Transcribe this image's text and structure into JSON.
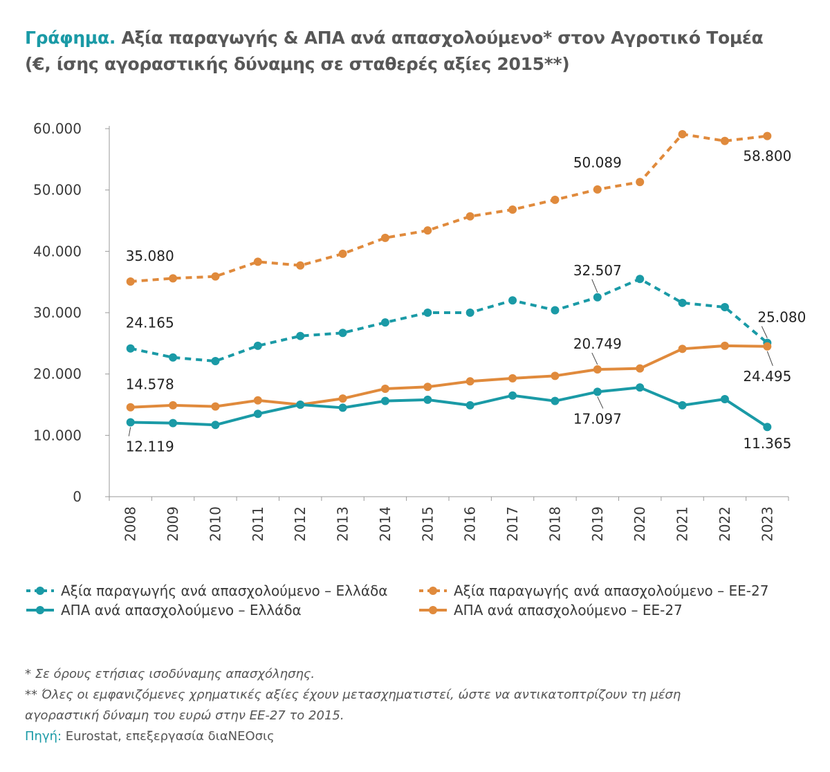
{
  "title": {
    "lead": "Γράφημα.",
    "line1": "Αξία παραγωγής & ΑΠΑ ανά απασχολούμενο* στον Αγροτικό Τομέα",
    "line2": "(€, ίσης αγοραστικής δύναμης σε σταθερές αξίες 2015**)"
  },
  "chart_data": {
    "type": "line",
    "categories": [
      "2008",
      "2009",
      "2010",
      "2011",
      "2012",
      "2013",
      "2014",
      "2015",
      "2016",
      "2017",
      "2018",
      "2019",
      "2020",
      "2021",
      "2022",
      "2023"
    ],
    "ylim": [
      0,
      60000
    ],
    "yticks": [
      "0",
      "10.000",
      "20.000",
      "30.000",
      "40.000",
      "50.000",
      "60.000"
    ],
    "grid": false,
    "legend_position": "bottom",
    "series": [
      {
        "name": "Αξία παραγωγής ανά απασχολούμενο – Ελλάδα",
        "color": "#1a9aa6",
        "style": "dashed",
        "values": [
          24165,
          22700,
          22100,
          24600,
          26200,
          26700,
          28400,
          30000,
          30000,
          32000,
          30400,
          32507,
          35500,
          31600,
          30900,
          25080
        ],
        "labels": {
          "0": "24.165",
          "11": "32.507",
          "15": "25.080"
        }
      },
      {
        "name": "Αξία παραγωγής ανά απασχολούμενο – ΕΕ-27",
        "color": "#e08a3c",
        "style": "dashed",
        "values": [
          35080,
          35600,
          35900,
          38300,
          37700,
          39600,
          42200,
          43400,
          45700,
          46800,
          48400,
          50089,
          51300,
          59100,
          58000,
          58800
        ],
        "labels": {
          "0": "35.080",
          "11": "50.089",
          "15": "58.800"
        }
      },
      {
        "name": "ΑΠΑ ανά απασχολούμενο – Ελλάδα",
        "color": "#1a9aa6",
        "style": "solid",
        "values": [
          12119,
          12000,
          11700,
          13500,
          15000,
          14500,
          15600,
          15800,
          14900,
          16500,
          15600,
          17097,
          17800,
          14900,
          15900,
          11365
        ],
        "labels": {
          "0": "12.119",
          "11": "17.097",
          "15": "11.365"
        }
      },
      {
        "name": "ΑΠΑ ανά απασχολούμενο – ΕΕ-27",
        "color": "#e08a3c",
        "style": "solid",
        "values": [
          14578,
          14900,
          14700,
          15700,
          15000,
          16000,
          17600,
          17900,
          18800,
          19300,
          19700,
          20749,
          20900,
          24100,
          24600,
          24495
        ],
        "labels": {
          "0": "14.578",
          "11": "20.749",
          "15": "24.495"
        }
      }
    ]
  },
  "notes": {
    "n1": "* Σε όρους ετήσιας ισοδύναμης απασχόλησης.",
    "n2": "** Όλες οι εμφανιζόμενες χρηματικές αξίες έχουν μετασχηματιστεί, ώστε να αντικατοπτρίζουν τη μέση",
    "n3": "αγοραστική δύναμη του ευρώ στην ΕΕ-27 το 2015.",
    "source_label": "Πηγή:",
    "source_text": " Eurostat, επεξεργασία διαΝΕΟσις"
  }
}
